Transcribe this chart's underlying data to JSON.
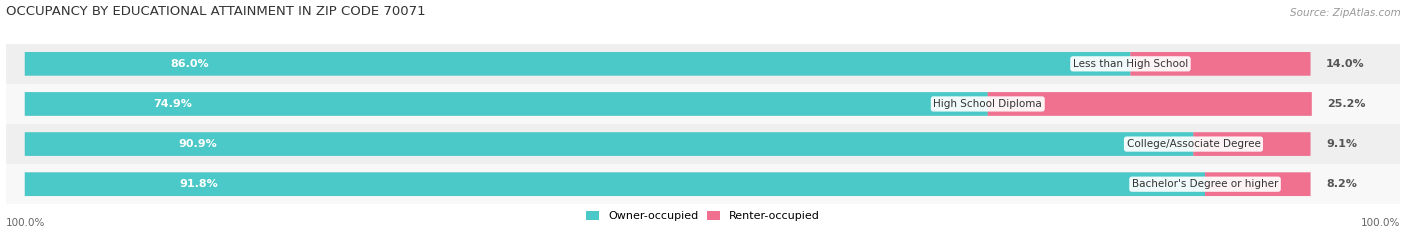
{
  "title": "OCCUPANCY BY EDUCATIONAL ATTAINMENT IN ZIP CODE 70071",
  "source": "Source: ZipAtlas.com",
  "categories": [
    "Less than High School",
    "High School Diploma",
    "College/Associate Degree",
    "Bachelor's Degree or higher"
  ],
  "owner_pct": [
    86.0,
    74.9,
    90.9,
    91.8
  ],
  "renter_pct": [
    14.0,
    25.2,
    9.1,
    8.2
  ],
  "owner_color": "#4bc8c8",
  "renter_color": "#f07090",
  "bar_bg_color": "#e0e0e0",
  "row_bg_colors": [
    "#efefef",
    "#f8f8f8",
    "#efefef",
    "#f8f8f8"
  ],
  "title_fontsize": 9.5,
  "label_fontsize": 8,
  "cat_fontsize": 7.5,
  "pct_fontsize": 8,
  "source_fontsize": 7.5,
  "bar_height": 0.58,
  "total_bar_width": 100.0,
  "x_left_label": "100.0%",
  "x_right_label": "100.0%"
}
